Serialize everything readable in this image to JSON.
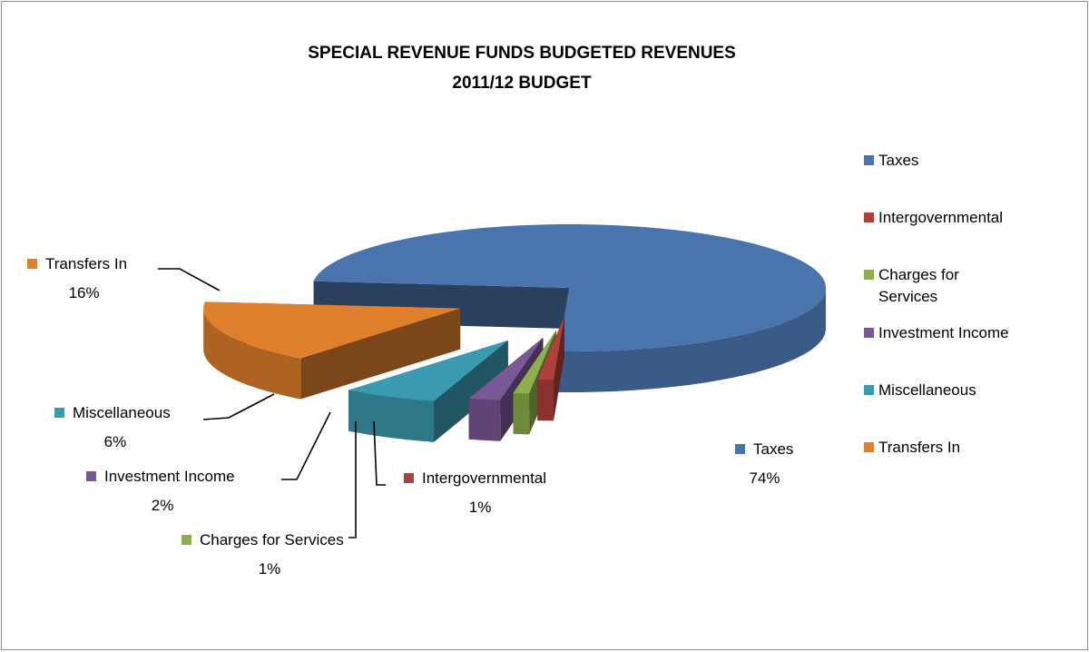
{
  "chart_data": {
    "type": "pie",
    "title": "SPECIAL REVENUE FUNDS BUDGETED REVENUES",
    "subtitle": "2011/12 BUDGET",
    "categories": [
      "Taxes",
      "Intergovernmental",
      "Charges for Services",
      "Investment Income",
      "Miscellaneous",
      "Transfers In"
    ],
    "values": [
      74,
      1,
      1,
      2,
      6,
      16
    ],
    "value_labels": [
      "74%",
      "1%",
      "1%",
      "2%",
      "6%",
      "16%"
    ],
    "colors": [
      "#4a74ad",
      "#b0403c",
      "#8db04a",
      "#7a5796",
      "#3a9bb0",
      "#e07f2c"
    ],
    "legend": {
      "position": "right",
      "entries": [
        {
          "label": "Taxes"
        },
        {
          "label": "Intergovernmental"
        },
        {
          "label": "Charges for",
          "label2": "Services"
        },
        {
          "label": "Investment Income"
        },
        {
          "label": "Miscellaneous"
        },
        {
          "label": "Transfers In"
        }
      ]
    },
    "style": "3d-exploded-pie"
  }
}
